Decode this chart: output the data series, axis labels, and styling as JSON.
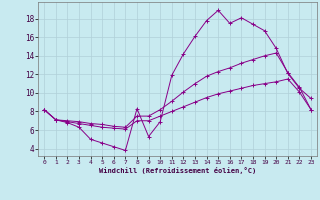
{
  "xlabel": "Windchill (Refroidissement éolien,°C)",
  "bg_color": "#c8eaf0",
  "grid_color": "#b0d0d8",
  "line_color": "#880088",
  "x_ticks": [
    0,
    1,
    2,
    3,
    4,
    5,
    6,
    7,
    8,
    9,
    10,
    11,
    12,
    13,
    14,
    15,
    16,
    17,
    18,
    19,
    20,
    21,
    22,
    23
  ],
  "y_ticks": [
    4,
    6,
    8,
    10,
    12,
    14,
    16,
    18
  ],
  "ylim": [
    3.2,
    19.8
  ],
  "xlim": [
    -0.5,
    23.5
  ],
  "line1_x": [
    0,
    1,
    2,
    3,
    4,
    5,
    6,
    7,
    8,
    9,
    10,
    11,
    12,
    13,
    14,
    15,
    16,
    17,
    18,
    19,
    20,
    21,
    22,
    23
  ],
  "line1_y": [
    8.2,
    7.1,
    6.8,
    6.3,
    5.0,
    4.6,
    4.2,
    3.8,
    8.3,
    5.3,
    6.9,
    11.9,
    14.2,
    16.1,
    17.8,
    18.9,
    17.5,
    18.1,
    17.4,
    16.7,
    14.8,
    12.1,
    10.5,
    9.4
  ],
  "line2_x": [
    0,
    1,
    2,
    3,
    4,
    5,
    6,
    7,
    8,
    9,
    10,
    11,
    12,
    13,
    14,
    15,
    16,
    17,
    18,
    19,
    20,
    21,
    22,
    23
  ],
  "line2_y": [
    8.2,
    7.1,
    7.0,
    6.9,
    6.7,
    6.6,
    6.4,
    6.3,
    7.5,
    7.5,
    8.2,
    9.1,
    10.1,
    11.0,
    11.8,
    12.3,
    12.7,
    13.2,
    13.6,
    14.0,
    14.3,
    12.2,
    10.6,
    8.2
  ],
  "line3_x": [
    0,
    1,
    2,
    3,
    4,
    5,
    6,
    7,
    8,
    9,
    10,
    11,
    12,
    13,
    14,
    15,
    16,
    17,
    18,
    19,
    20,
    21,
    22,
    23
  ],
  "line3_y": [
    8.2,
    7.1,
    6.9,
    6.7,
    6.5,
    6.3,
    6.2,
    6.1,
    7.0,
    7.0,
    7.5,
    8.0,
    8.5,
    9.0,
    9.5,
    9.9,
    10.2,
    10.5,
    10.8,
    11.0,
    11.2,
    11.5,
    10.1,
    8.2
  ]
}
